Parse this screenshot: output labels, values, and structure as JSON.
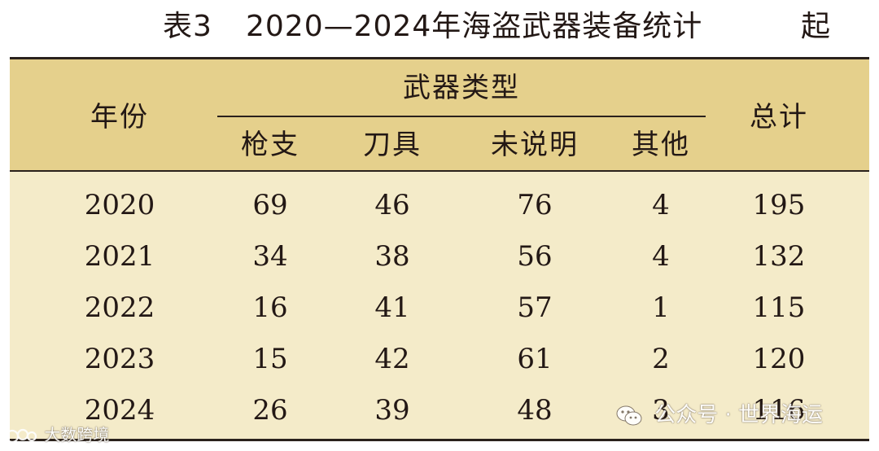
{
  "caption": {
    "label": "表3",
    "title": "2020—2024年海盗武器装备统计",
    "tail": "起"
  },
  "chart_data": {
    "type": "table",
    "header": {
      "year": "年份",
      "group": "武器类型",
      "columns": [
        "枪支",
        "刀具",
        "未说明",
        "其他"
      ],
      "total": "总计"
    },
    "rows": [
      {
        "year": "2020",
        "values": [
          "69",
          "46",
          "76",
          "4"
        ],
        "total": "195"
      },
      {
        "year": "2021",
        "values": [
          "34",
          "38",
          "56",
          "4"
        ],
        "total": "132"
      },
      {
        "year": "2022",
        "values": [
          "16",
          "41",
          "57",
          "1"
        ],
        "total": "115"
      },
      {
        "year": "2023",
        "values": [
          "15",
          "42",
          "61",
          "2"
        ],
        "total": "120"
      },
      {
        "year": "2024",
        "values": [
          "26",
          "39",
          "48",
          "3"
        ],
        "total": "116"
      }
    ]
  },
  "colors": {
    "header_bg": "#e5d08c",
    "body_bg": "#f4ebc9",
    "rule": "#2a211c",
    "text": "#231815"
  },
  "watermarks": {
    "left_text": "大数跨境",
    "right_text": "公众号 · 世界海运",
    "left_icon": "brand-logo-icon",
    "right_icon": "wechat-icon"
  }
}
